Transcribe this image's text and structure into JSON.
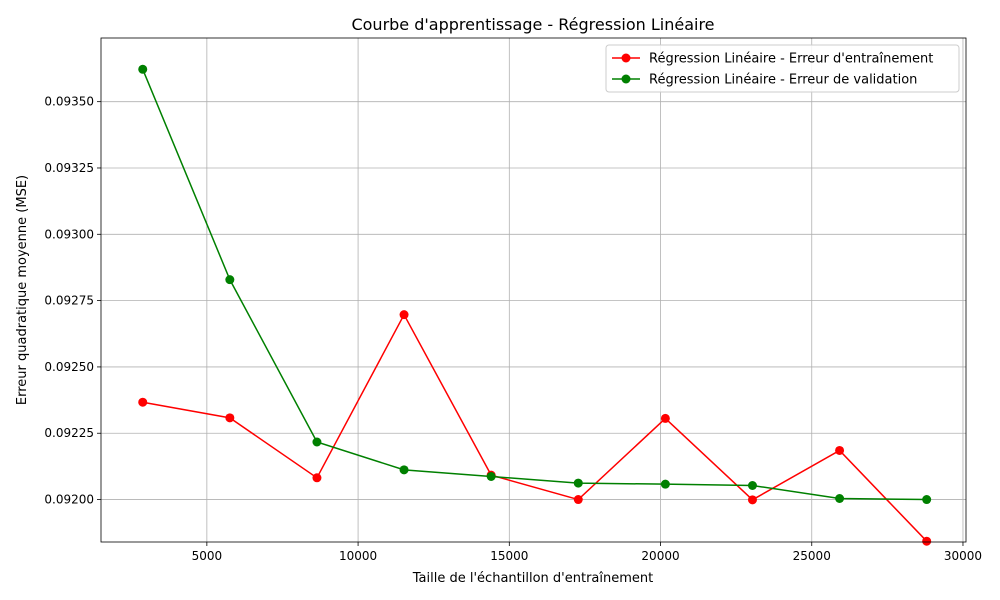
{
  "chart_data": {
    "type": "line",
    "title": "Courbe d'apprentissage - Régression Linéaire",
    "xlabel": "Taille de l'échantillon d'entraînement",
    "ylabel": "Erreur quadratique moyenne (MSE)",
    "xlim": [
      1500,
      30100
    ],
    "ylim": [
      0.09184,
      0.09374
    ],
    "xticks": [
      5000,
      10000,
      15000,
      20000,
      25000,
      30000
    ],
    "yticks": [
      0.092,
      0.09225,
      0.0925,
      0.09275,
      0.093,
      0.09325,
      0.0935
    ],
    "xtick_labels": [
      "5000",
      "10000",
      "15000",
      "20000",
      "25000",
      "30000"
    ],
    "ytick_labels": [
      "0.09200",
      "0.09225",
      "0.09250",
      "0.09275",
      "0.09300",
      "0.09325",
      "0.09350"
    ],
    "grid": true,
    "legend_position": "top-right",
    "x": [
      2880,
      5760,
      8640,
      11520,
      14400,
      17280,
      20160,
      23040,
      25920,
      28800
    ],
    "series": [
      {
        "name": "Régression Linéaire - Erreur d'entraînement",
        "color": "#ff0000",
        "values": [
          0.092367,
          0.092308,
          0.092082,
          0.092697,
          0.092092,
          0.092,
          0.092306,
          0.091999,
          0.092185,
          0.091843
        ]
      },
      {
        "name": "Régression Linéaire - Erreur de validation",
        "color": "#008000",
        "values": [
          0.093622,
          0.092829,
          0.092217,
          0.092112,
          0.092087,
          0.092062,
          0.092058,
          0.092053,
          0.092004,
          0.092
        ]
      }
    ]
  }
}
